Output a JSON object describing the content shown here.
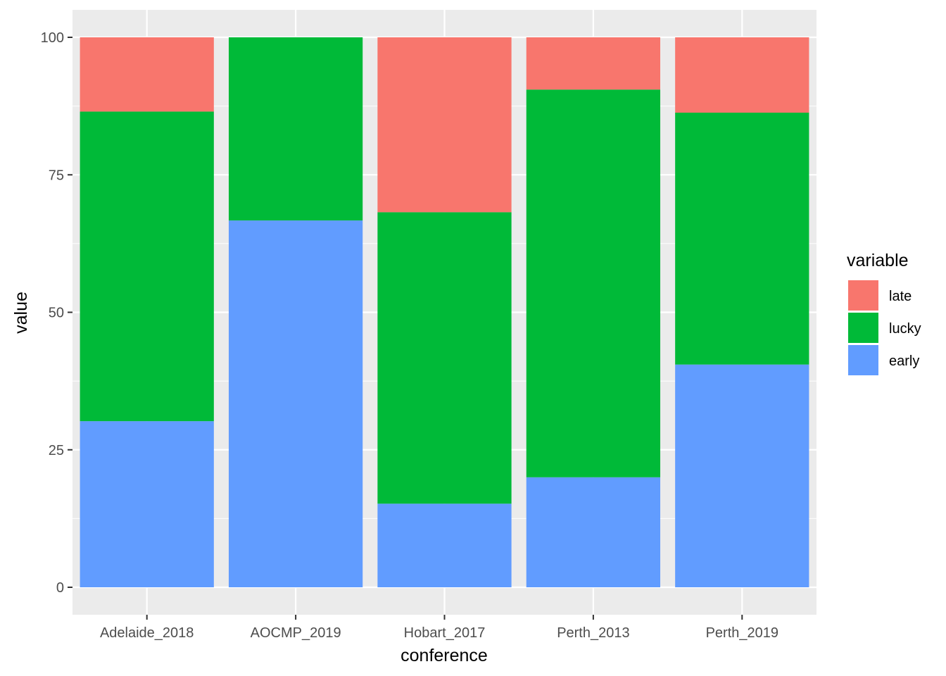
{
  "chart_data": {
    "type": "bar",
    "stacked": true,
    "categories": [
      "Adelaide_2018",
      "AOCMP_2019",
      "Hobart_2017",
      "Perth_2013",
      "Perth_2019"
    ],
    "series": [
      {
        "name": "early",
        "color": "#619CFF",
        "values": [
          30.2,
          66.7,
          15.2,
          20.0,
          40.5
        ]
      },
      {
        "name": "lucky",
        "color": "#00BA38",
        "values": [
          56.3,
          33.3,
          53.0,
          70.5,
          45.8
        ]
      },
      {
        "name": "late",
        "color": "#F8766D",
        "values": [
          13.5,
          0.0,
          31.8,
          9.5,
          13.7
        ]
      }
    ],
    "stack_order_top_to_bottom": [
      "late",
      "lucky",
      "early"
    ],
    "xlabel": "conference",
    "ylabel": "value",
    "ylim": [
      0,
      100
    ],
    "yticks": [
      0,
      25,
      50,
      75,
      100
    ],
    "grid": true,
    "legend": {
      "title": "variable",
      "position": "right",
      "items": [
        "late",
        "lucky",
        "early"
      ]
    },
    "panel_color": "#EBEBEB",
    "grid_color": "#FFFFFF"
  }
}
